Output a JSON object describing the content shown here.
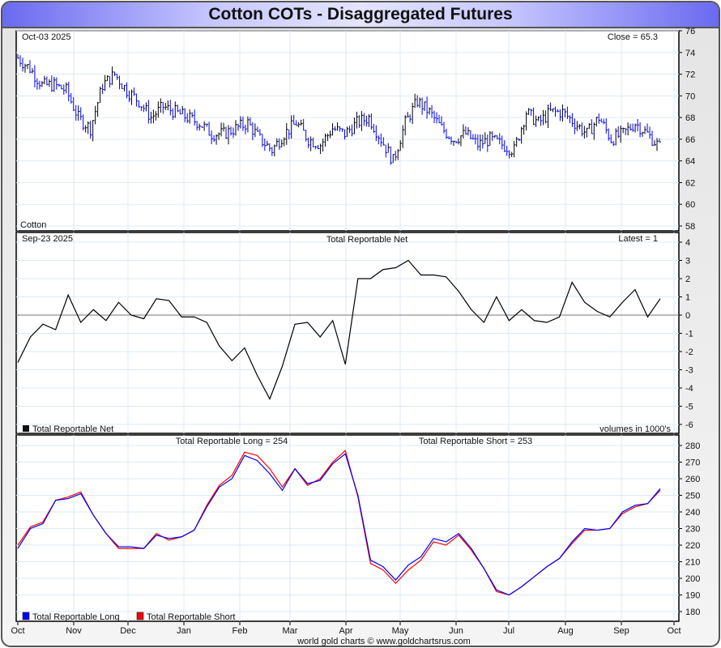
{
  "title": "Cotton COTs - Disaggregated Futures",
  "footer": "world gold charts © www.goldchartsrus.com",
  "months": [
    "Oct",
    "Nov",
    "Dec",
    "Jan",
    "Feb",
    "Mar",
    "Apr",
    "May",
    "Jun",
    "Jul",
    "Aug",
    "Sep",
    "Oct"
  ],
  "chart_data": [
    {
      "type": "bar",
      "name": "price",
      "date_label": "Oct-03  2025",
      "close_label": "Close = 65.3",
      "symbol_label": "Cotton",
      "ylim": [
        58,
        76
      ],
      "yticks": [
        58,
        60,
        62,
        64,
        66,
        68,
        70,
        72,
        74,
        76
      ],
      "weekly_closes": [
        73.5,
        72.5,
        71,
        71,
        70.5,
        68,
        67,
        71,
        72,
        70.5,
        69.5,
        68,
        69,
        68.5,
        68,
        67.5,
        66.5,
        66.5,
        67,
        67.5,
        66,
        65,
        66.5,
        67.5,
        66,
        65.5,
        67,
        66.5,
        67.5,
        68,
        66,
        64,
        67.5,
        69.5,
        68.5,
        67,
        66,
        66.5,
        65.5,
        66,
        65.5,
        65,
        68.5,
        67.5,
        68.5,
        68.5,
        67.5,
        66.5,
        68,
        66,
        66.5,
        67.5,
        66.5,
        65.3
      ]
    },
    {
      "type": "line",
      "name": "net",
      "date_label": "Sep-23  2025",
      "title": "Total Reportable Net",
      "latest_label": "Latest = 1",
      "legend": "Total Reportable Net",
      "units_label": "volumes in 1000's",
      "ylim": [
        -6,
        4
      ],
      "yticks": [
        -6,
        -5,
        -4,
        -3,
        -2,
        -1,
        0,
        1,
        2,
        3,
        4
      ],
      "values": [
        -2.6,
        -1.2,
        -0.5,
        -0.8,
        1.1,
        -0.4,
        0.3,
        -0.3,
        0.7,
        0.0,
        -0.2,
        0.9,
        0.8,
        -0.1,
        -0.1,
        -0.4,
        -1.7,
        -2.5,
        -1.8,
        -3.3,
        -4.6,
        -2.8,
        -0.5,
        -0.4,
        -1.2,
        -0.3,
        -2.7,
        2.0,
        2.0,
        2.5,
        2.6,
        3.0,
        2.2,
        2.2,
        2.1,
        1.3,
        0.3,
        -0.4,
        1.0,
        -0.3,
        0.3,
        -0.3,
        -0.4,
        -0.1,
        1.8,
        0.7,
        0.2,
        -0.1,
        0.7,
        1.4,
        -0.1,
        0.9
      ]
    },
    {
      "type": "line",
      "name": "long-short",
      "long_label": "Total Reportable Long = 254",
      "short_label": "Total Reportable Short = 253",
      "ylim": [
        180,
        280
      ],
      "yticks": [
        180,
        190,
        200,
        210,
        220,
        230,
        240,
        250,
        260,
        270,
        280
      ],
      "series": [
        {
          "name": "Total Reportable Long",
          "color": "#0000ff",
          "values": [
            218,
            230,
            233,
            247,
            248,
            251,
            238,
            227,
            219,
            219,
            218,
            226,
            224,
            225,
            229,
            243,
            255,
            260,
            274,
            271,
            263,
            253,
            266,
            257,
            259,
            269,
            275,
            250,
            211,
            207,
            199,
            208,
            213,
            224,
            222,
            227,
            218,
            206,
            193,
            190,
            195,
            201,
            207,
            212,
            222,
            230,
            229,
            230,
            240,
            244,
            245,
            254
          ]
        },
        {
          "name": "Total Reportable Short",
          "color": "#ff0000",
          "values": [
            220,
            231,
            234,
            247,
            249,
            252,
            238,
            227,
            218,
            218,
            218,
            227,
            223,
            225,
            229,
            244,
            256,
            262,
            276,
            274,
            266,
            255,
            266,
            256,
            260,
            270,
            277,
            249,
            209,
            205,
            197,
            205,
            211,
            222,
            220,
            226,
            217,
            206,
            192,
            190,
            195,
            201,
            207,
            212,
            221,
            229,
            229,
            230,
            239,
            243,
            245,
            253
          ]
        }
      ]
    }
  ]
}
